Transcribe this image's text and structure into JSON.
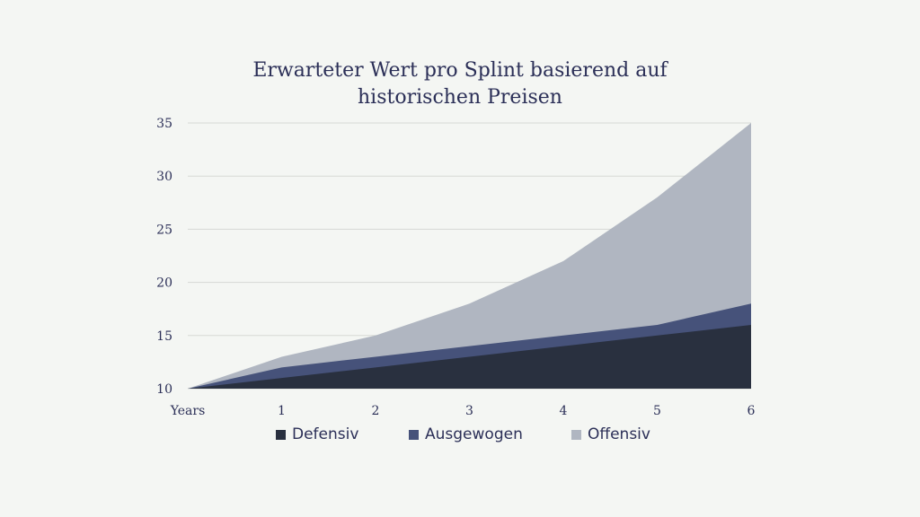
{
  "chart_data": {
    "type": "area",
    "stacked": false,
    "title_lines": [
      "Erwarteter Wert pro Splint basierend auf",
      "historischen Preisen"
    ],
    "x": [
      0,
      1,
      2,
      3,
      4,
      5,
      6
    ],
    "x_tick_labels": [
      "Years",
      "1",
      "2",
      "3",
      "4",
      "5",
      "6"
    ],
    "ylim": [
      10,
      35
    ],
    "y_ticks": [
      10,
      15,
      20,
      25,
      30,
      35
    ],
    "grid": "horizontal",
    "legend_position": "bottom",
    "series": [
      {
        "name": "Offensiv",
        "values": [
          10,
          13,
          15,
          18,
          22,
          28,
          35
        ],
        "color": "#b0b6c1"
      },
      {
        "name": "Ausgewogen",
        "values": [
          10,
          12,
          13,
          14,
          15,
          16,
          18
        ],
        "color": "#46527a"
      },
      {
        "name": "Defensiv",
        "values": [
          10,
          11,
          12,
          13,
          14,
          15,
          16
        ],
        "color": "#29303f"
      }
    ],
    "legend": [
      {
        "name": "Defensiv",
        "color": "#29303f"
      },
      {
        "name": "Ausgewogen",
        "color": "#46527a"
      },
      {
        "name": "Offensiv",
        "color": "#b0b6c1"
      }
    ]
  }
}
